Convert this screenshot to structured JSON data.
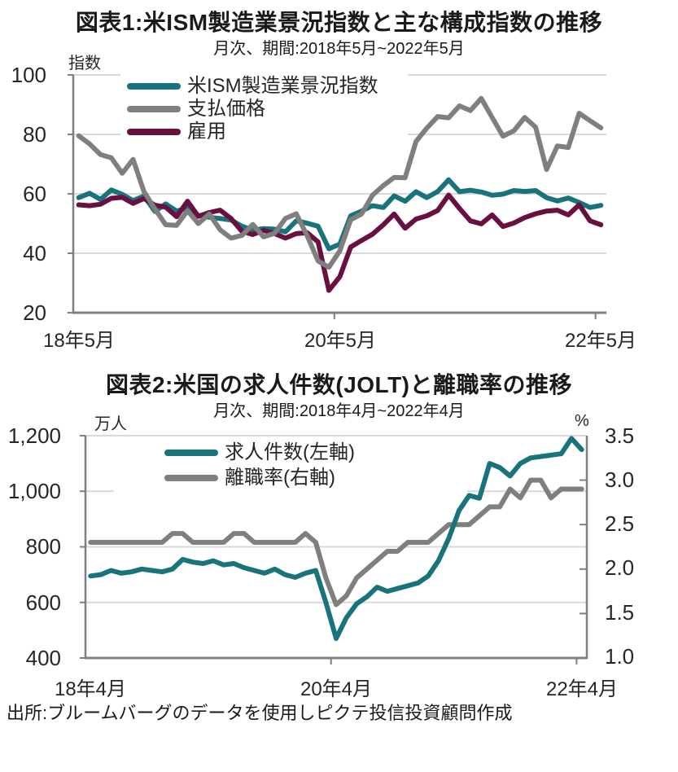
{
  "colors": {
    "teal": "#18737b",
    "gray": "#7f7f7f",
    "maroon": "#691040",
    "grid": "#d9d9d9",
    "axis": "#7f7f7f",
    "text": "#262626"
  },
  "source_note": "出所:ブルームバーグのデータを使用しピクテ投信投資顧問作成",
  "chart_data": [
    {
      "type": "line",
      "title": "図表1:米ISM製造業景況指数と主な構成指数の推移",
      "subtitle": "月次、期間:2018年5月~2022年5月",
      "ylabel": "指数",
      "ylim_left": [
        20,
        100
      ],
      "gridlines_left": [
        40,
        60,
        80,
        100
      ],
      "left_tick_values": [
        20,
        40,
        60,
        80,
        100
      ],
      "yticks": [
        "100",
        "80",
        "60",
        "40",
        "20"
      ],
      "xticks": [
        "18年5月",
        "20年5月",
        "22年5月"
      ],
      "legend_position": "top-left-inside",
      "series": [
        {
          "name": "米ISM製造業景況指数",
          "color": "#18737b",
          "axis": "left",
          "values": [
            58.7,
            60.2,
            58.1,
            61.3,
            59.8,
            57.7,
            59.3,
            54.1,
            56.6,
            54.2,
            55.3,
            52.8,
            52.1,
            51.7,
            51.2,
            49.1,
            47.8,
            48.3,
            48.1,
            47.2,
            50.9,
            50.1,
            49.1,
            41.5,
            43.1,
            52.6,
            54.2,
            56.0,
            55.4,
            59.3,
            57.5,
            60.7,
            58.7,
            60.8,
            64.7,
            60.7,
            61.2,
            60.6,
            59.5,
            59.9,
            61.1,
            60.8,
            61.1,
            58.7,
            57.6,
            58.6,
            57.1,
            55.4,
            56.1
          ]
        },
        {
          "name": "支払価格",
          "color": "#7f7f7f",
          "axis": "left",
          "values": [
            79.5,
            76.8,
            73.2,
            72.1,
            66.9,
            71.6,
            60.7,
            54.9,
            49.6,
            49.4,
            54.3,
            50.0,
            53.2,
            47.9,
            45.1,
            46.0,
            49.7,
            45.5,
            46.7,
            51.7,
            53.3,
            45.9,
            37.4,
            35.3,
            40.8,
            51.3,
            53.2,
            59.5,
            62.8,
            65.5,
            65.4,
            77.6,
            82.1,
            86.0,
            85.6,
            89.6,
            88.0,
            92.1,
            85.7,
            79.4,
            81.2,
            85.7,
            82.4,
            68.2,
            76.1,
            75.6,
            87.1,
            84.6,
            82.2
          ]
        },
        {
          "name": "雇用",
          "color": "#691040",
          "axis": "left",
          "values": [
            56.3,
            56.0,
            56.5,
            58.5,
            58.8,
            56.8,
            58.4,
            56.2,
            55.5,
            52.3,
            57.5,
            52.4,
            53.7,
            54.5,
            51.7,
            47.4,
            46.3,
            47.7,
            46.6,
            45.1,
            46.6,
            46.9,
            43.8,
            27.5,
            32.1,
            42.1,
            44.3,
            46.4,
            49.6,
            53.2,
            48.4,
            51.5,
            52.6,
            54.4,
            59.6,
            55.1,
            50.9,
            49.9,
            52.9,
            49.0,
            50.2,
            52.0,
            53.3,
            54.2,
            54.5,
            52.9,
            56.3,
            50.9,
            49.6
          ]
        }
      ]
    },
    {
      "type": "line",
      "title": "図表2:米国の求人件数(JOLT)と離職率の推移",
      "subtitle": "月次、期間:2018年4月~2022年4月",
      "ylabel_left": "万人",
      "ylabel_right": "%",
      "ylim_left": [
        400,
        1200
      ],
      "ylim_right": [
        1.0,
        3.5
      ],
      "gridlines_left": [
        600,
        800,
        1000,
        1200
      ],
      "left_tick_values": [
        400,
        600,
        800,
        1000,
        1200
      ],
      "right_tick_values": [
        1.0,
        1.5,
        2.0,
        2.5,
        3.0
      ],
      "yticks_left": [
        "1,200",
        "1,000",
        "800",
        "600",
        "400"
      ],
      "yticks_right": [
        "3.5",
        "3.0",
        "2.5",
        "2.0",
        "1.5",
        "1.0"
      ],
      "xticks": [
        "18年4月",
        "20年4月",
        "22年4月"
      ],
      "legend_position": "top-left-inside",
      "series": [
        {
          "name": "求人件数(左軸)",
          "color": "#18737b",
          "axis": "left",
          "values": [
            695,
            700,
            715,
            705,
            710,
            720,
            715,
            710,
            720,
            755,
            745,
            740,
            750,
            735,
            740,
            725,
            715,
            705,
            720,
            700,
            690,
            705,
            715,
            600,
            470,
            545,
            595,
            620,
            655,
            640,
            650,
            660,
            670,
            695,
            750,
            830,
            930,
            985,
            975,
            1100,
            1085,
            1055,
            1100,
            1120,
            1125,
            1130,
            1135,
            1190,
            1150
          ]
        },
        {
          "name": "離職率(右軸)",
          "color": "#7f7f7f",
          "axis": "right",
          "values": [
            2.3,
            2.3,
            2.3,
            2.3,
            2.3,
            2.3,
            2.3,
            2.3,
            2.4,
            2.4,
            2.3,
            2.3,
            2.3,
            2.3,
            2.4,
            2.4,
            2.3,
            2.3,
            2.3,
            2.3,
            2.3,
            2.4,
            2.3,
            1.9,
            1.6,
            1.7,
            1.9,
            2.0,
            2.1,
            2.2,
            2.2,
            2.3,
            2.3,
            2.3,
            2.4,
            2.5,
            2.5,
            2.5,
            2.6,
            2.7,
            2.7,
            2.9,
            2.8,
            3.0,
            3.0,
            2.8,
            2.9,
            2.9,
            2.9
          ]
        }
      ]
    }
  ]
}
